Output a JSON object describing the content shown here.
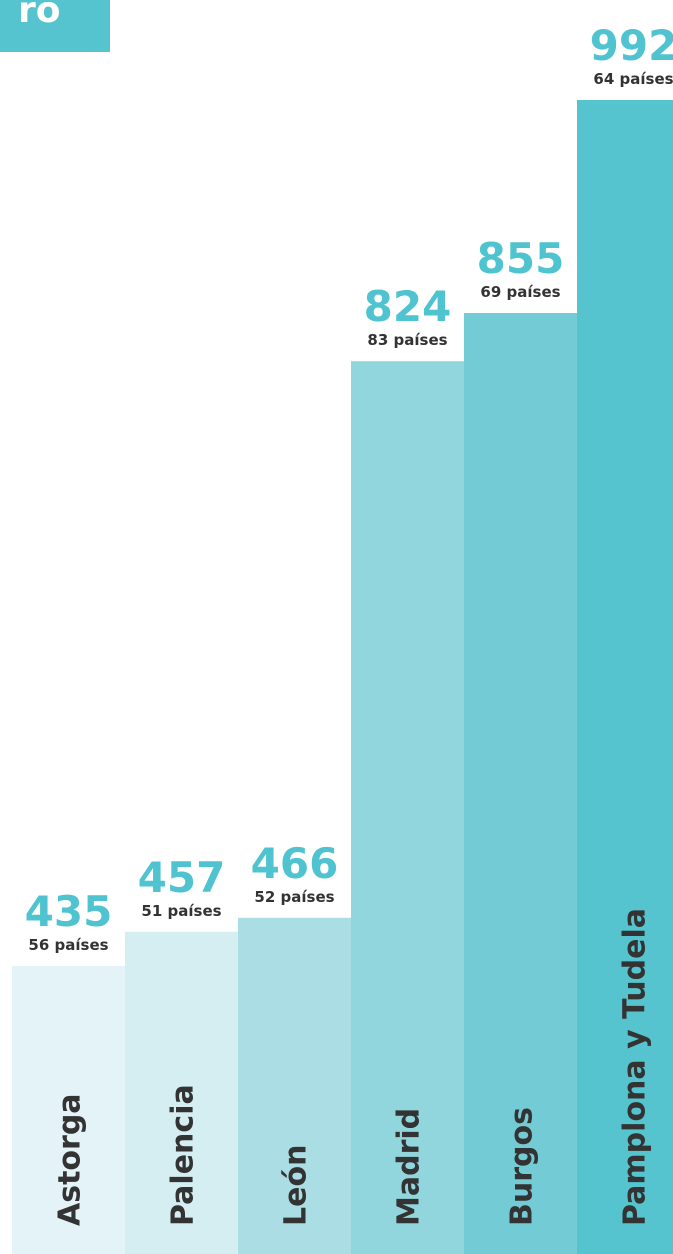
{
  "chart_data": {
    "type": "bar",
    "title": "ro",
    "categories": [
      "Astorga",
      "Palencia",
      "León",
      "Madrid",
      "Burgos",
      "Pamplona y Tudela"
    ],
    "values": [
      435,
      457,
      466,
      824,
      855,
      992
    ],
    "sublabels": [
      "56 países",
      "51 países",
      "52 países",
      "83 países",
      "69 países",
      "64 países"
    ],
    "colors": [
      "#e4f3f7",
      "#d5eef2",
      "#aadde4",
      "#91d6dd",
      "#73ccd5",
      "#55c4cf"
    ],
    "label_color": "#4fc3cf"
  }
}
